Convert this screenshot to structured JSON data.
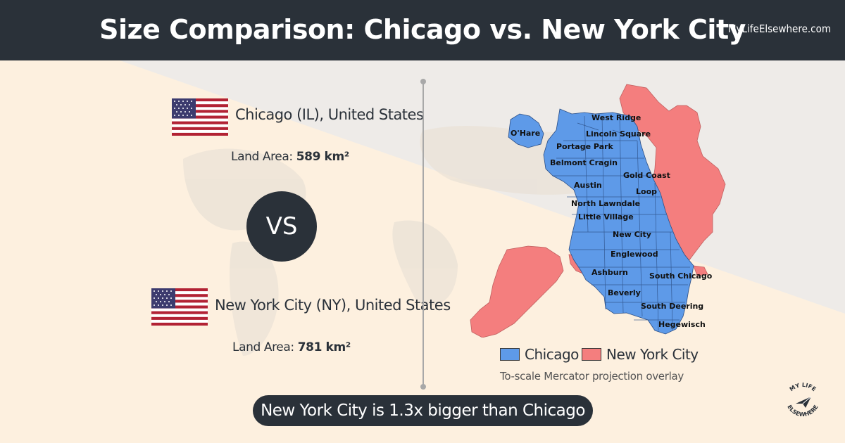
{
  "header": {
    "title": "Size Comparison: Chicago vs. New York City",
    "site": "MyLifeElsewhere.com"
  },
  "cities": [
    {
      "label": "Chicago (IL), United States",
      "area_label": "Land Area:",
      "area_value": "589 km²",
      "color": "#5e9ae8"
    },
    {
      "label": "New York City (NY), United States",
      "area_label": "Land Area:",
      "area_value": "781 km²",
      "color": "#f47e7e"
    }
  ],
  "vs_label": "VS",
  "map": {
    "neighborhoods": [
      "West Ridge",
      "O'Hare",
      "Lincoln Square",
      "Portage Park",
      "Belmont Cragin",
      "Gold Coast",
      "Austin",
      "Loop",
      "North Lawndale",
      "Little Village",
      "New City",
      "Englewood",
      "Ashburn",
      "South Chicago",
      "Beverly",
      "South Deering",
      "Hegewisch"
    ]
  },
  "legend": {
    "items": [
      {
        "label": "Chicago",
        "color": "#5e9ae8"
      },
      {
        "label": "New York City",
        "color": "#f47e7e"
      }
    ],
    "note": "To-scale Mercator projection overlay"
  },
  "verdict": "New York City is 1.3x bigger than Chicago",
  "logo": {
    "text_top": "MY LIFE",
    "text_bottom": "ELSEWHERE",
    "icon": "paper-plane-icon"
  }
}
